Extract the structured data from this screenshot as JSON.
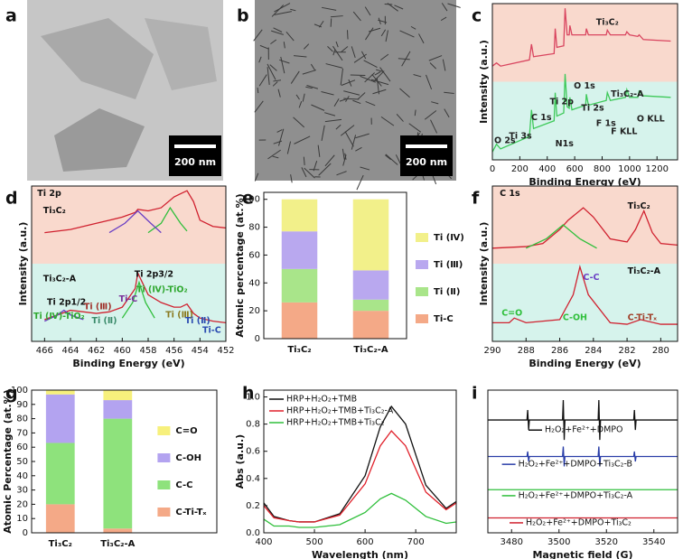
{
  "panel_labels": [
    "a",
    "b",
    "c",
    "d",
    "e",
    "f",
    "g",
    "h",
    "i"
  ],
  "scale_bars": [
    "200 nm",
    "200 nm"
  ],
  "chart_data": [
    {
      "type": "line",
      "xlabel": "Binding Energy (eV)",
      "ylabel": "Intensity (a.u.)",
      "xlim": [
        0,
        1350
      ],
      "ylim": [
        0,
        1
      ],
      "xticks": [
        0,
        200,
        400,
        600,
        800,
        1000,
        1200
      ],
      "x": [
        0,
        30,
        60,
        270,
        285,
        300,
        450,
        458,
        470,
        520,
        530,
        545,
        560,
        565,
        580,
        680,
        685,
        700,
        830,
        838,
        860,
        970,
        980,
        1000,
        1060,
        1070,
        1100,
        1300
      ],
      "series": [
        {
          "color": "#d9455f",
          "values": [
            0.6,
            0.62,
            0.6,
            0.64,
            0.74,
            0.66,
            0.68,
            0.84,
            0.72,
            0.73,
            0.97,
            0.8,
            0.8,
            0.86,
            0.8,
            0.8,
            0.84,
            0.8,
            0.8,
            0.83,
            0.8,
            0.8,
            0.82,
            0.8,
            0.79,
            0.8,
            0.77,
            0.76
          ]
        },
        {
          "color": "#3ec95a",
          "values": [
            0.05,
            0.1,
            0.07,
            0.15,
            0.32,
            0.2,
            0.25,
            0.43,
            0.28,
            0.3,
            0.55,
            0.34,
            0.33,
            0.4,
            0.32,
            0.35,
            0.42,
            0.35,
            0.38,
            0.43,
            0.38,
            0.4,
            0.45,
            0.4,
            0.4,
            0.44,
            0.41,
            0.4
          ]
        }
      ],
      "annotations": [
        {
          "text": "Ti₃C₂",
          "color": "#222"
        },
        {
          "text": "Ti₃C₂-A",
          "color": "#222"
        },
        {
          "text": "O 1s",
          "color": "#222"
        },
        {
          "text": "Ti 2p",
          "color": "#222"
        },
        {
          "text": "Ti 2s",
          "color": "#222"
        },
        {
          "text": "C 1s",
          "color": "#222"
        },
        {
          "text": "F 1s",
          "color": "#222"
        },
        {
          "text": "F KLL",
          "color": "#222"
        },
        {
          "text": "O KLL",
          "color": "#222"
        },
        {
          "text": "O 2s",
          "color": "#222"
        },
        {
          "text": "Ti 3s",
          "color": "#222"
        },
        {
          "text": "N1s",
          "color": "#222"
        }
      ]
    },
    {
      "type": "line",
      "xlabel": "Binding Energy (eV)",
      "ylabel": "Intensity (a.u.)",
      "xlim": [
        467,
        452
      ],
      "ylim": [
        0,
        1
      ],
      "xticks": [
        466,
        464,
        462,
        460,
        458,
        456,
        454,
        452
      ],
      "series": [
        {
          "color": "#d0212f",
          "x": [
            466,
            464,
            462,
            461,
            460,
            459,
            458.8,
            458,
            457,
            456,
            455.5,
            455,
            454.5,
            454,
            453,
            452
          ],
          "values": [
            0.7,
            0.72,
            0.76,
            0.78,
            0.8,
            0.83,
            0.85,
            0.84,
            0.86,
            0.93,
            0.95,
            0.97,
            0.9,
            0.78,
            0.74,
            0.73
          ]
        },
        {
          "color": "#2fbf3b",
          "x": [
            458,
            457,
            456.3,
            455.5,
            455
          ],
          "values": [
            0.7,
            0.76,
            0.86,
            0.76,
            0.71
          ]
        },
        {
          "color": "#6a3fc4",
          "x": [
            461,
            459.8,
            458.8,
            457.8,
            457
          ],
          "values": [
            0.7,
            0.76,
            0.84,
            0.76,
            0.7
          ]
        },
        {
          "color": "#d0212f",
          "x": [
            466,
            464,
            462,
            461,
            460,
            459,
            458.8,
            458,
            457,
            456,
            455.5,
            455,
            454.5,
            454,
            453,
            452
          ],
          "values": [
            0.14,
            0.2,
            0.18,
            0.19,
            0.22,
            0.34,
            0.44,
            0.3,
            0.25,
            0.22,
            0.22,
            0.24,
            0.18,
            0.15,
            0.13,
            0.12
          ]
        },
        {
          "color": "#2fbf3b",
          "x": [
            460,
            459.2,
            458.7,
            458.2,
            457.5
          ],
          "values": [
            0.15,
            0.25,
            0.38,
            0.25,
            0.15
          ]
        },
        {
          "color": "#6a3fc4",
          "x": [
            466,
            465,
            464.5,
            464,
            463
          ],
          "values": [
            0.13,
            0.17,
            0.2,
            0.17,
            0.14
          ]
        }
      ],
      "annotations": [
        {
          "text": "Ti 2p",
          "color": "#111"
        },
        {
          "text": "Ti₃C₂",
          "color": "#111"
        },
        {
          "text": "Ti₃C₂-A",
          "color": "#111"
        },
        {
          "text": "Ti 2p3/2",
          "color": "#111"
        },
        {
          "text": "Ti (Ⅳ)-TiO₂",
          "color": "#2fa82f"
        },
        {
          "text": "Ti 2p1/2",
          "color": "#111"
        },
        {
          "text": "Ti (Ⅳ)-TiO₂",
          "color": "#2fa82f"
        },
        {
          "text": "Ti (Ⅲ)",
          "color": "#a0302a"
        },
        {
          "text": "Ti (Ⅱ)",
          "color": "#3a8a6a"
        },
        {
          "text": "Ti-C",
          "color": "#7a2f9a"
        },
        {
          "text": "Ti (Ⅲ)",
          "color": "#8a7a20"
        },
        {
          "text": "Ti (Ⅱ)",
          "color": "#2a4ab0"
        },
        {
          "text": "Ti-C",
          "color": "#2a4ab0"
        }
      ]
    },
    {
      "type": "stacked_bar",
      "ylabel": "Atomic percentage (at.%)",
      "categories": [
        "Ti₃C₂",
        "Ti₃C₂-A"
      ],
      "ylim": [
        0,
        105
      ],
      "yticks": [
        0,
        20,
        40,
        60,
        80,
        100
      ],
      "series": [
        {
          "name": "Ti-C",
          "color": "#f4a987",
          "values": [
            26,
            20
          ]
        },
        {
          "name": "Ti (Ⅱ)",
          "color": "#a9e58a",
          "values": [
            24,
            8
          ]
        },
        {
          "name": "Ti (Ⅲ)",
          "color": "#b9a8ef",
          "values": [
            27,
            21
          ]
        },
        {
          "name": "Ti (Ⅳ)",
          "color": "#f2f08a",
          "values": [
            23,
            51
          ]
        }
      ]
    },
    {
      "type": "line",
      "xlabel": "Binding Energy (eV)",
      "ylabel": "Intensity (a.u.)",
      "xlim": [
        290,
        279
      ],
      "ylim": [
        0,
        1
      ],
      "xticks": [
        290,
        288,
        286,
        284,
        282,
        280
      ],
      "series": [
        {
          "color": "#d0212f",
          "x": [
            290,
            288,
            287,
            286,
            285.5,
            284.6,
            284,
            283,
            282,
            281.5,
            281,
            280.5,
            280,
            279
          ],
          "values": [
            0.6,
            0.61,
            0.63,
            0.72,
            0.78,
            0.86,
            0.8,
            0.66,
            0.64,
            0.72,
            0.84,
            0.7,
            0.63,
            0.62
          ]
        },
        {
          "color": "#2fbf3b",
          "x": [
            288,
            286.8,
            285.8,
            284.8,
            283.8
          ],
          "values": [
            0.6,
            0.66,
            0.75,
            0.66,
            0.6
          ]
        },
        {
          "color": "#d0212f",
          "x": [
            290,
            289,
            288.7,
            288,
            286,
            285.2,
            284.8,
            284.3,
            283,
            282,
            281.2,
            280,
            279
          ],
          "values": [
            0.12,
            0.12,
            0.15,
            0.12,
            0.14,
            0.3,
            0.48,
            0.3,
            0.12,
            0.11,
            0.14,
            0.11,
            0.11
          ]
        }
      ],
      "annotations": [
        {
          "text": "C 1s",
          "color": "#111"
        },
        {
          "text": "Ti₃C₂",
          "color": "#111"
        },
        {
          "text": "Ti₃C₂-A",
          "color": "#111"
        },
        {
          "text": "C-C",
          "color": "#6a3fc4"
        },
        {
          "text": "C=O",
          "color": "#2fbf3b"
        },
        {
          "text": "C-OH",
          "color": "#2fbf3b"
        },
        {
          "text": "C-Ti-Tₓ",
          "color": "#a0402a"
        }
      ]
    },
    {
      "type": "stacked_bar",
      "ylabel": "Atomic Percentage (at.%)",
      "categories": [
        "Ti₃C₂",
        "Ti₃C₂-A"
      ],
      "ylim": [
        0,
        100
      ],
      "yticks": [
        0,
        10,
        20,
        30,
        40,
        50,
        60,
        70,
        80,
        90,
        100
      ],
      "series": [
        {
          "name": "C-Ti-Tₓ",
          "color": "#f4a987",
          "values": [
            20,
            3
          ]
        },
        {
          "name": "C-C",
          "color": "#8ee27c",
          "values": [
            43,
            77
          ]
        },
        {
          "name": "C-OH",
          "color": "#b3a3f0",
          "values": [
            34,
            13
          ]
        },
        {
          "name": "C=O",
          "color": "#f7f07c",
          "values": [
            3,
            7
          ]
        }
      ]
    },
    {
      "type": "line",
      "xlabel": "Wavelength (nm)",
      "ylabel": "Abs (a.u.)",
      "xlim": [
        400,
        780
      ],
      "ylim": [
        0,
        1.05
      ],
      "xticks": [
        400,
        500,
        600,
        700
      ],
      "yticks": [
        {
          "value": 0,
          "label": "0.0"
        },
        0.2,
        0.4,
        0.6,
        0.8,
        {
          "value": 1,
          "label": "1.0"
        }
      ],
      "x": [
        400,
        420,
        450,
        470,
        500,
        550,
        600,
        630,
        652,
        680,
        720,
        760,
        780
      ],
      "legend": "upper left",
      "series": [
        {
          "name": "HRP+H₂O₂+TMB",
          "color": "#111111",
          "values": [
            0.22,
            0.12,
            0.09,
            0.08,
            0.08,
            0.14,
            0.42,
            0.78,
            0.93,
            0.8,
            0.35,
            0.18,
            0.23
          ]
        },
        {
          "name": "HRP+H₂O₂+TMB+Ti₃C₂-A",
          "color": "#e0202a",
          "values": [
            0.2,
            0.11,
            0.09,
            0.08,
            0.08,
            0.13,
            0.36,
            0.64,
            0.75,
            0.64,
            0.3,
            0.17,
            0.22
          ]
        },
        {
          "name": "HRP+H₂O₂+TMB+Ti₃C₂",
          "color": "#2fbf3b",
          "values": [
            0.1,
            0.05,
            0.05,
            0.04,
            0.04,
            0.06,
            0.15,
            0.25,
            0.29,
            0.24,
            0.12,
            0.07,
            0.08
          ]
        }
      ]
    },
    {
      "type": "line",
      "xlabel": "Magnetic field (G)",
      "xlim": [
        3470,
        3550
      ],
      "ylim": [
        0,
        4.3
      ],
      "xticks": [
        3480,
        3500,
        3520,
        3540
      ],
      "series": [
        {
          "name": "H₂O₂+Fe²⁺+DMPO",
          "color": "#111111",
          "x": [
            3470,
            3486.5,
            3486.8,
            3487.2,
            3487.5,
            3501.5,
            3501.8,
            3502.2,
            3502.5,
            3516.5,
            3516.8,
            3517.2,
            3517.5,
            3531.5,
            3531.8,
            3532.2,
            3532.5,
            3550
          ],
          "values": [
            3.4,
            3.4,
            3.7,
            3.1,
            3.4,
            3.4,
            4.0,
            2.8,
            3.4,
            3.4,
            4.0,
            2.8,
            3.4,
            3.4,
            3.7,
            3.1,
            3.4,
            3.4
          ]
        },
        {
          "name": "H₂O₂+Fe²⁺+DMPO+Ti₃C₂-B",
          "color": "#2a3ea8",
          "x": [
            3470,
            3486.5,
            3486.8,
            3487.2,
            3487.5,
            3501.5,
            3501.8,
            3502.2,
            3502.5,
            3516.5,
            3516.8,
            3517.2,
            3517.5,
            3531.5,
            3531.8,
            3532.2,
            3532.5,
            3550
          ],
          "values": [
            2.3,
            2.3,
            2.45,
            2.15,
            2.3,
            2.3,
            2.6,
            2.0,
            2.3,
            2.3,
            2.6,
            2.0,
            2.3,
            2.3,
            2.45,
            2.15,
            2.3,
            2.3
          ]
        },
        {
          "name": "H₂O₂+Fe²⁺+DMPO+Ti₃C₂-A",
          "color": "#2fbf3b",
          "x": [
            3470,
            3550
          ],
          "values": [
            1.3,
            1.3
          ]
        },
        {
          "name": "H₂O₂+Fe²⁺+DMPO+Ti₃C₂",
          "color": "#d0212f",
          "x": [
            3470,
            3550
          ],
          "values": [
            0.45,
            0.45
          ]
        }
      ]
    }
  ]
}
